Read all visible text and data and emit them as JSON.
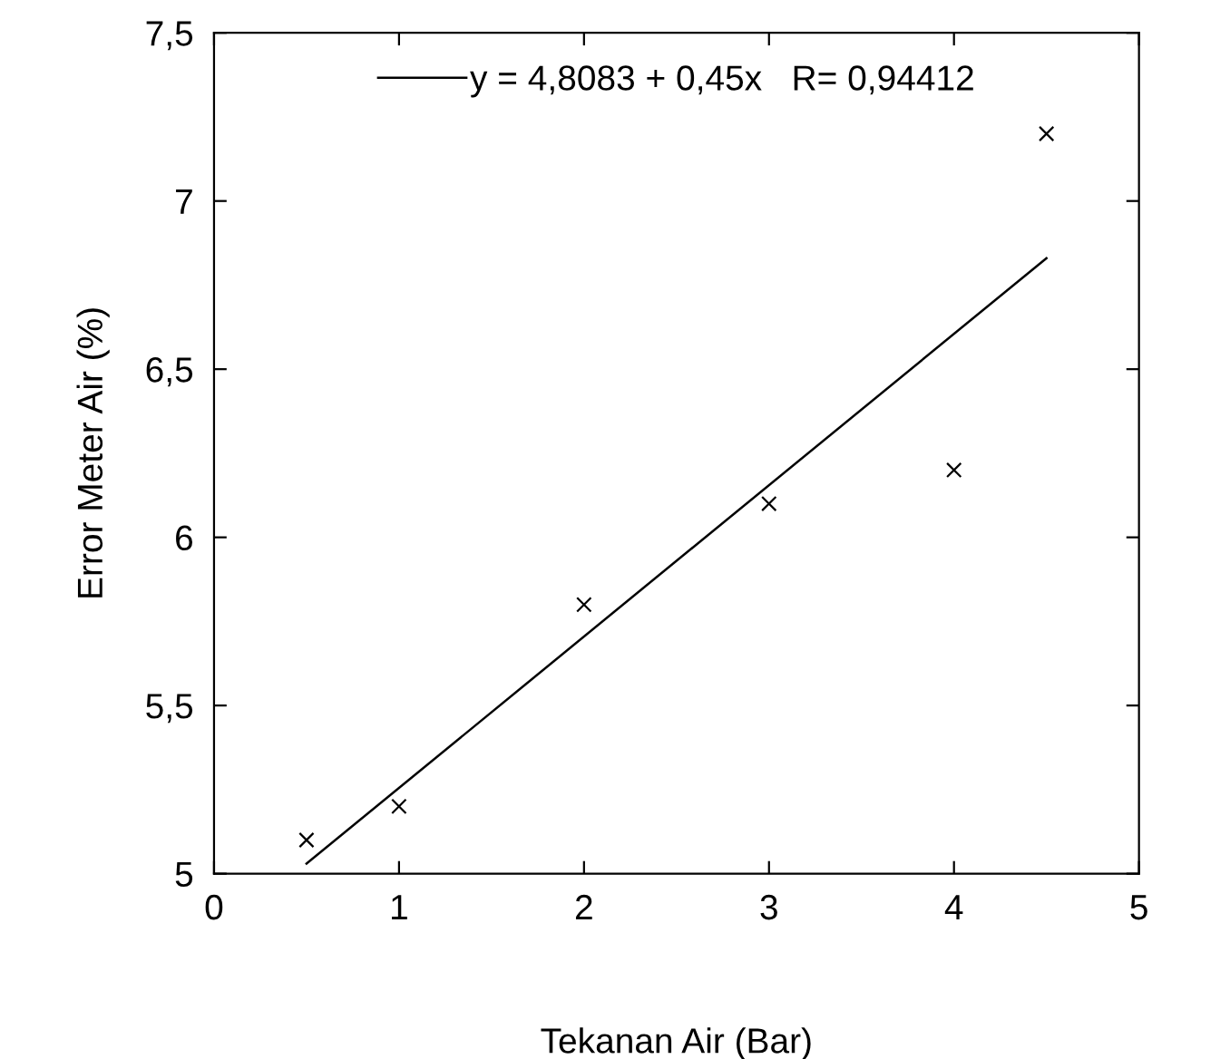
{
  "chart_data": {
    "type": "scatter",
    "xlabel": "Tekanan Air (Bar)",
    "ylabel": "Error Meter Air (%)",
    "xlim": [
      0,
      5
    ],
    "xticks": [
      0,
      1,
      2,
      3,
      4,
      5
    ],
    "ylim": [
      5,
      7.5
    ],
    "yticks": [
      {
        "value": 5,
        "label": "5"
      },
      {
        "value": 5.5,
        "label": "5,5"
      },
      {
        "value": 6,
        "label": "6"
      },
      {
        "value": 6.5,
        "label": "6,5"
      },
      {
        "value": 7,
        "label": "7"
      },
      {
        "value": 7.5,
        "label": "7,5"
      }
    ],
    "grid": false,
    "legend": "top",
    "series": [
      {
        "marker": "cross",
        "color": "#000000",
        "x": [
          0.5,
          1,
          2,
          3,
          4,
          4.5
        ],
        "values": [
          5.1,
          5.2,
          5.8,
          6.1,
          6.2,
          7.2
        ]
      },
      {
        "type": "line",
        "marker": "none",
        "name": "y = 4,8083 + 0,45x   R= 0,94412",
        "color": "#000000",
        "x": [
          0.5,
          4.5
        ],
        "values": [
          5.03,
          6.83
        ]
      }
    ]
  }
}
